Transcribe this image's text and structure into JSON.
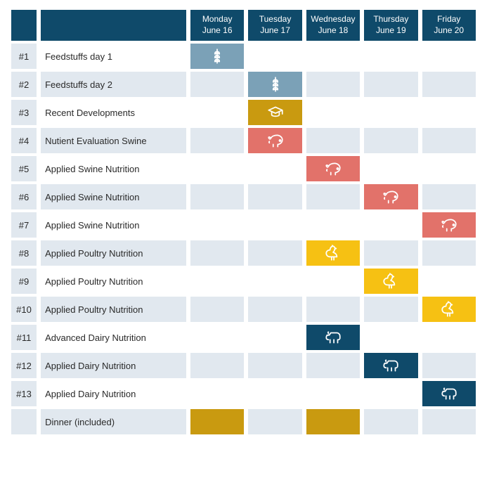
{
  "colors": {
    "header_bg": "#0f4a6a",
    "shade_bg": "#e1e8ef",
    "feedstuffs": "#7ba1b7",
    "developments": "#c99a10",
    "swine": "#e2726a",
    "poultry": "#f6c113",
    "dairy": "#0f4a6a",
    "dinner": "#c99a10"
  },
  "days": [
    {
      "dow": "Monday",
      "date": "June 16"
    },
    {
      "dow": "Tuesday",
      "date": "June 17"
    },
    {
      "dow": "Wednesday",
      "date": "June 18"
    },
    {
      "dow": "Thursday",
      "date": "June 19"
    },
    {
      "dow": "Friday",
      "date": "June 20"
    }
  ],
  "rows": [
    {
      "num": "#1",
      "label": "Feedstuffs day 1",
      "shaded": false,
      "cells": [
        {
          "color_key": "feedstuffs",
          "icon": "grain"
        },
        null,
        null,
        null,
        null
      ]
    },
    {
      "num": "#2",
      "label": "Feedstuffs day 2",
      "shaded": true,
      "cells": [
        null,
        {
          "color_key": "feedstuffs",
          "icon": "grain"
        },
        null,
        null,
        null
      ]
    },
    {
      "num": "#3",
      "label": "Recent Developments",
      "shaded": false,
      "cells": [
        null,
        {
          "color_key": "developments",
          "icon": "cap"
        },
        null,
        null,
        null
      ]
    },
    {
      "num": "#4",
      "label": "Nutient Evaluation Swine",
      "shaded": true,
      "cells": [
        null,
        {
          "color_key": "swine",
          "icon": "pig"
        },
        null,
        null,
        null
      ]
    },
    {
      "num": "#5",
      "label": "Applied Swine Nutrition",
      "shaded": false,
      "cells": [
        null,
        null,
        {
          "color_key": "swine",
          "icon": "pig"
        },
        null,
        null
      ]
    },
    {
      "num": "#6",
      "label": "Applied Swine Nutrition",
      "shaded": true,
      "cells": [
        null,
        null,
        null,
        {
          "color_key": "swine",
          "icon": "pig"
        },
        null
      ]
    },
    {
      "num": "#7",
      "label": "Applied Swine Nutrition",
      "shaded": false,
      "cells": [
        null,
        null,
        null,
        null,
        {
          "color_key": "swine",
          "icon": "pig"
        }
      ]
    },
    {
      "num": "#8",
      "label": "Applied Poultry Nutrition",
      "shaded": true,
      "cells": [
        null,
        null,
        {
          "color_key": "poultry",
          "icon": "chicken"
        },
        null,
        null
      ]
    },
    {
      "num": "#9",
      "label": "Applied Poultry Nutrition",
      "shaded": false,
      "cells": [
        null,
        null,
        null,
        {
          "color_key": "poultry",
          "icon": "chicken"
        },
        null
      ]
    },
    {
      "num": "#10",
      "label": "Applied Poultry Nutrition",
      "shaded": true,
      "cells": [
        null,
        null,
        null,
        null,
        {
          "color_key": "poultry",
          "icon": "chicken"
        }
      ]
    },
    {
      "num": "#11",
      "label": "Advanced Dairy Nutrition",
      "shaded": false,
      "cells": [
        null,
        null,
        {
          "color_key": "dairy",
          "icon": "cow"
        },
        null,
        null
      ]
    },
    {
      "num": "#12",
      "label": "Applied Dairy Nutrition",
      "shaded": true,
      "cells": [
        null,
        null,
        null,
        {
          "color_key": "dairy",
          "icon": "cow"
        },
        null
      ]
    },
    {
      "num": "#13",
      "label": "Applied Dairy Nutrition",
      "shaded": false,
      "cells": [
        null,
        null,
        null,
        null,
        {
          "color_key": "dairy",
          "icon": "cow"
        }
      ]
    },
    {
      "num": "",
      "label": "Dinner (included)",
      "shaded": true,
      "cells": [
        {
          "color_key": "dinner",
          "icon": null
        },
        null,
        {
          "color_key": "dinner",
          "icon": null
        },
        null,
        null
      ]
    }
  ]
}
